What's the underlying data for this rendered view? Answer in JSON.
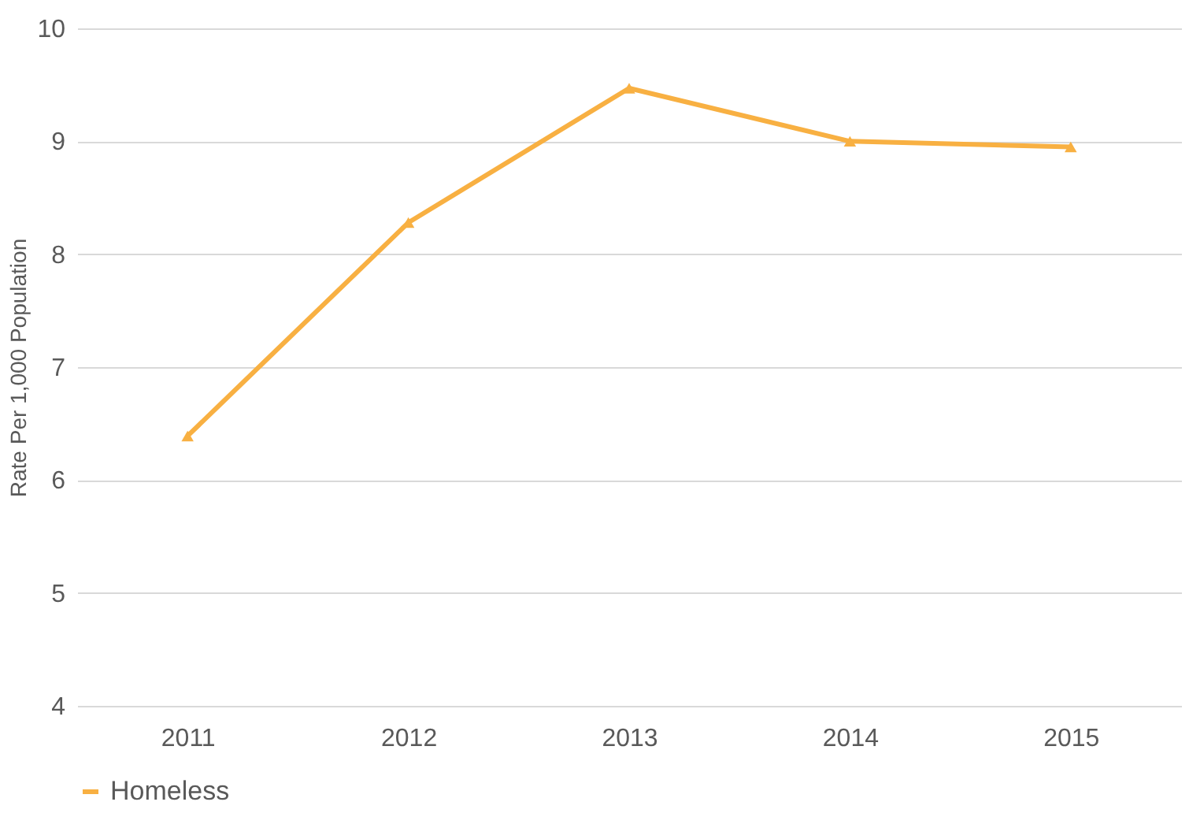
{
  "chart_data": {
    "type": "line",
    "ylabel": "Rate Per 1,000 Population",
    "categories": [
      "2011",
      "2012",
      "2013",
      "2014",
      "2015"
    ],
    "series": [
      {
        "name": "Homeless",
        "color": "#f8b042",
        "values": [
          6.39,
          8.28,
          9.47,
          9.0,
          8.95
        ]
      }
    ],
    "ylim": [
      4,
      10
    ],
    "yticks": [
      4,
      5,
      6,
      7,
      8,
      9,
      10
    ],
    "grid": "y",
    "legend": "bottom",
    "marker": "triangle",
    "line_style": "solid"
  }
}
